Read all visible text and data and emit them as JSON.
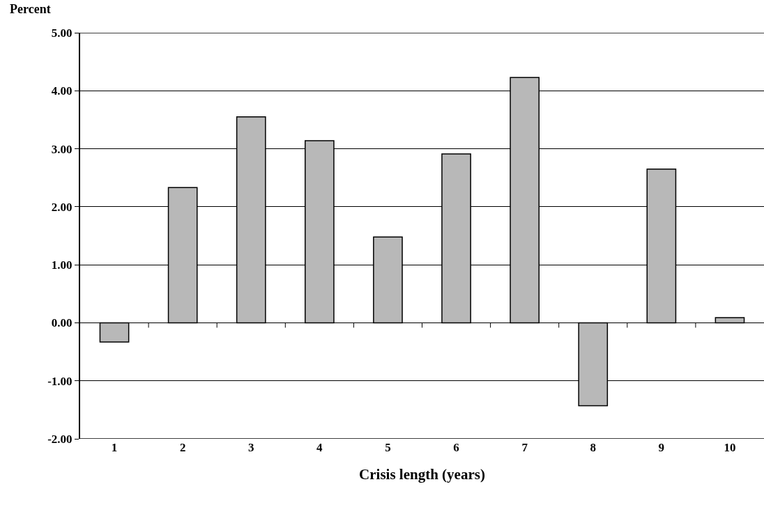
{
  "chart_data": {
    "type": "bar",
    "xlabel": "Crisis length (years)",
    "ylabel": "Percent",
    "categories": [
      "1",
      "2",
      "3",
      "4",
      "5",
      "6",
      "7",
      "8",
      "9",
      "10"
    ],
    "values": [
      -0.33,
      2.33,
      3.55,
      3.14,
      1.48,
      2.91,
      4.23,
      -1.43,
      2.65,
      0.09
    ],
    "color": "#b8b8b8",
    "ylim": [
      -2,
      5
    ],
    "yticks": [
      {
        "value": -2,
        "label": "-2.00"
      },
      {
        "value": -1,
        "label": "-1.00"
      },
      {
        "value": 0,
        "label": "0.00"
      },
      {
        "value": 1,
        "label": "1.00"
      },
      {
        "value": 2,
        "label": "2.00"
      },
      {
        "value": 3,
        "label": "3.00"
      },
      {
        "value": 4,
        "label": "4.00"
      },
      {
        "value": 5,
        "label": "5.00"
      }
    ],
    "grid": "y",
    "legend": false
  }
}
